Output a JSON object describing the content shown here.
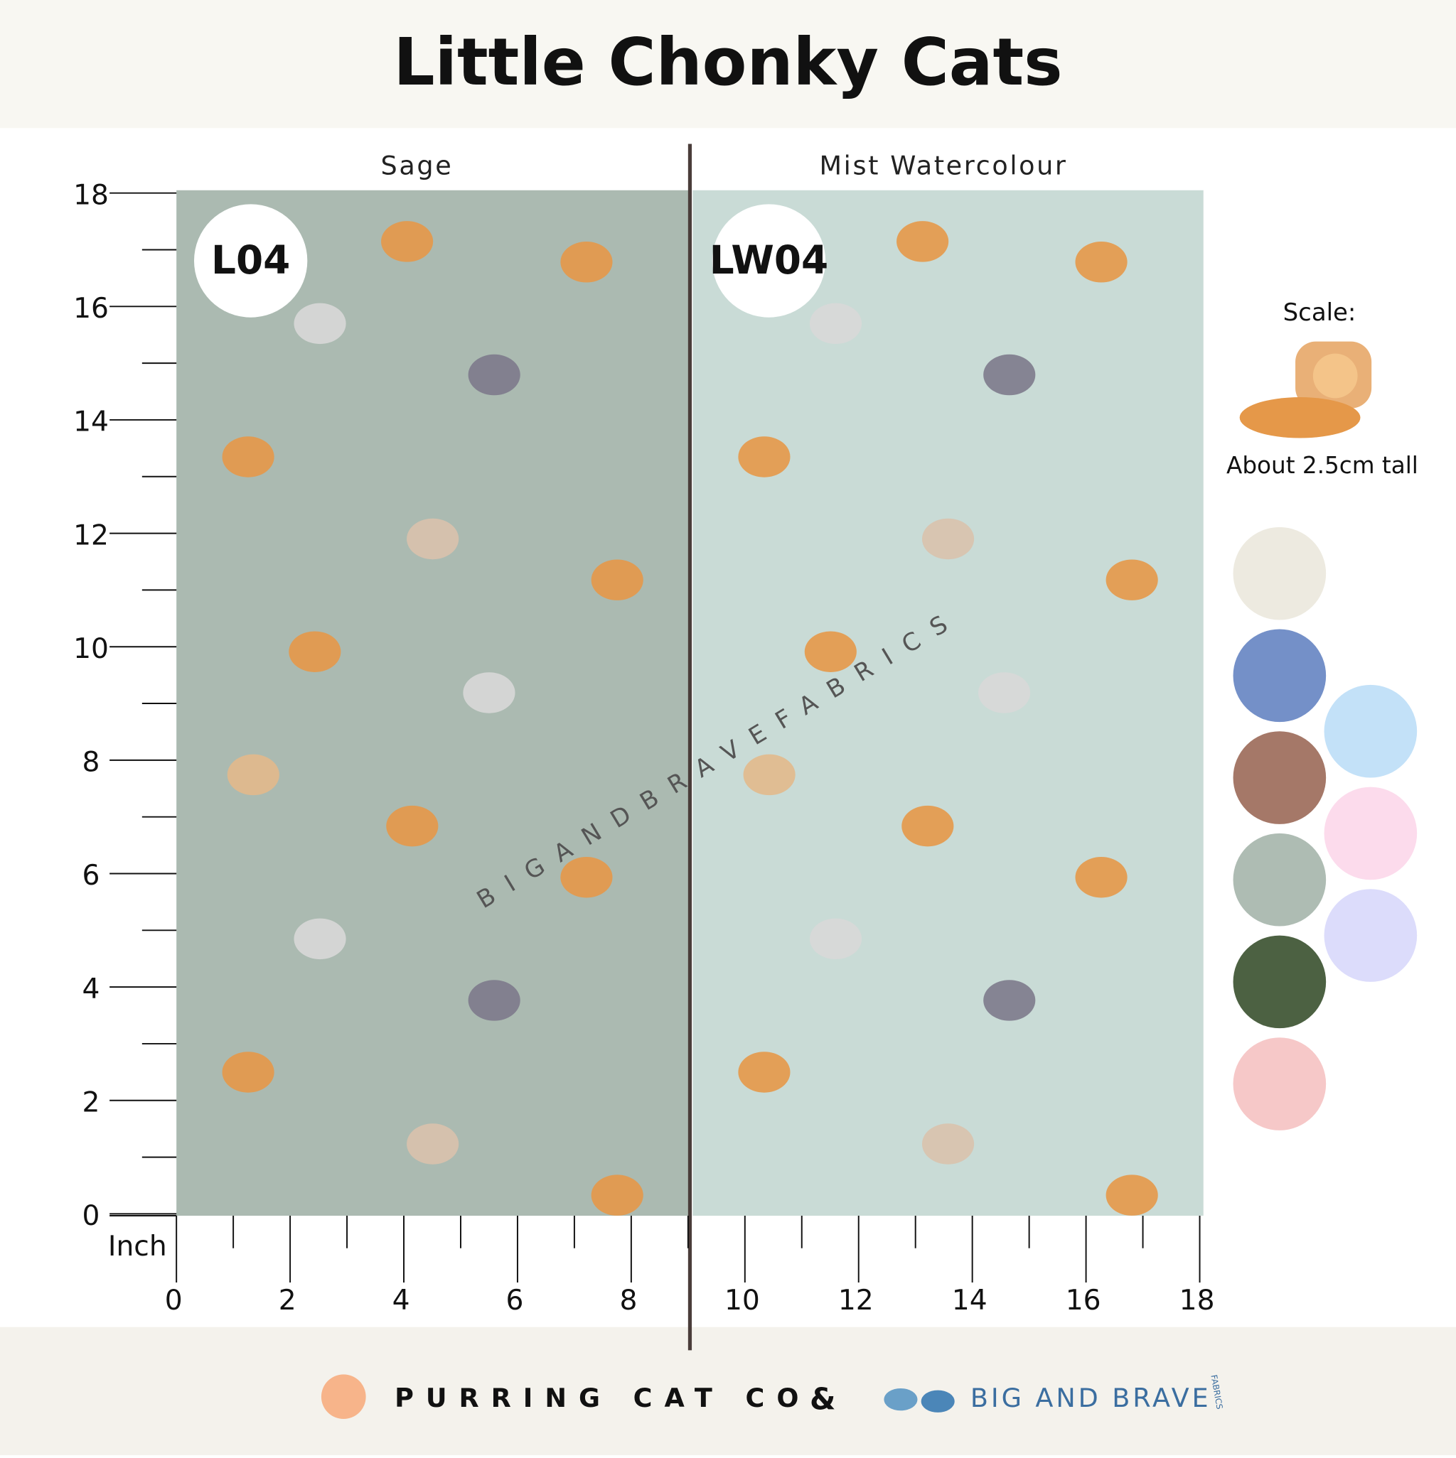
{
  "header": {
    "title": "Little Chonky Cats"
  },
  "panels": [
    {
      "name": "Sage",
      "code": "L04",
      "color": "#abbab1"
    },
    {
      "name": "Mist Watercolour",
      "code": "LW04",
      "color": "#c9dbd6"
    }
  ],
  "ruler": {
    "unit": "Inch",
    "range": [
      0,
      18
    ],
    "y_labels": [
      0,
      2,
      4,
      6,
      8,
      10,
      12,
      14,
      16,
      18
    ],
    "x_labels": [
      0,
      2,
      4,
      6,
      8,
      10,
      12,
      14,
      16,
      18
    ]
  },
  "watermark": "BIGANDBRAVEFABRICS",
  "scale": {
    "label": "Scale:",
    "note": "About 2.5cm tall"
  },
  "swatches": [
    "#edeae0",
    "#7490c8",
    "#a57868",
    "#aebcb3",
    "#4c6142",
    "#f6c8c8",
    "#c3e1f8",
    "#fcdbec",
    "#dcdcfb"
  ],
  "footer": {
    "brand1": "PURRING CAT CO",
    "joiner": "&",
    "brand2": "BIG AND BRAVE",
    "brand2_sub": "FABRICS"
  }
}
